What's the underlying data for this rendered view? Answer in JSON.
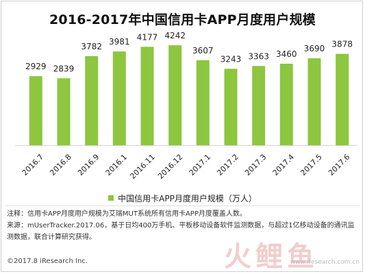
{
  "title": "2016-2017年中国信用卡APP月度用户规模",
  "chart_data": {
    "type": "bar",
    "categories": [
      "2016.7",
      "2016.8",
      "2016.9",
      "2016.1",
      "2016.11",
      "2016.12",
      "2017.1",
      "2017.2",
      "2017.3",
      "2017.4",
      "2017.5",
      "2017.6"
    ],
    "series": [
      {
        "name": "中国信用卡APP月度用户规模（万人）",
        "values": [
          2929,
          2839,
          3782,
          3981,
          4177,
          4242,
          3607,
          3243,
          3363,
          3460,
          3690,
          3878
        ]
      }
    ],
    "bar_color": "#8dc63f",
    "grid": false,
    "legend_position": "bottom"
  },
  "legend_label": "中国信用卡APP月度用户规模（万人）",
  "notes": {
    "note1": "注释：信用卡APP月度用户规模为艾瑞MUT系统所有信用卡APP月度覆盖人数。",
    "note2": "来源：mUserTracker.2017.06，基于日均400万手机、平板移动设备软件监测数据，与超过1亿移动设备的通讯监测数据，联合计算研究获得。"
  },
  "copyright": "©2017.8 iResearch Inc.",
  "watermark": {
    "logo_text": "火鲤鱼",
    "url": "www.iresearch.com.cn"
  }
}
